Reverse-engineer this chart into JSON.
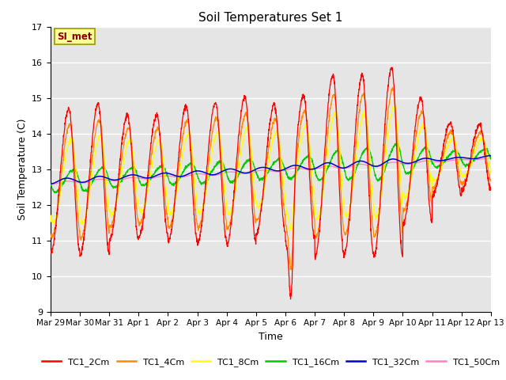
{
  "title": "Soil Temperatures Set 1",
  "xlabel": "Time",
  "ylabel": "Soil Temperature (C)",
  "ylim": [
    9.0,
    17.0
  ],
  "yticks": [
    9.0,
    10.0,
    11.0,
    12.0,
    13.0,
    14.0,
    15.0,
    16.0,
    17.0
  ],
  "xtick_labels": [
    "Mar 29",
    "Mar 30",
    "Mar 31",
    "Apr 1",
    "Apr 2",
    "Apr 3",
    "Apr 4",
    "Apr 5",
    "Apr 6",
    "Apr 7",
    "Apr 8",
    "Apr 9",
    "Apr 10",
    "Apr 11",
    "Apr 12",
    "Apr 13"
  ],
  "annotation_text": "SI_met",
  "annotation_color": "#8B0000",
  "annotation_bg": "#FFFF99",
  "bg_color": "#E5E5E5",
  "line_colors": {
    "TC1_2Cm": "#FF0000",
    "TC1_4Cm": "#FF8C00",
    "TC1_8Cm": "#FFFF00",
    "TC1_16Cm": "#00CC00",
    "TC1_32Cm": "#0000CD",
    "TC1_50Cm": "#FF80C0"
  }
}
